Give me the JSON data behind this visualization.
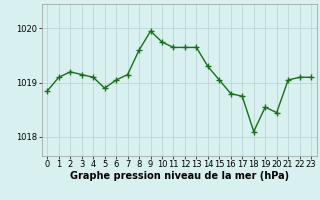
{
  "x": [
    0,
    1,
    2,
    3,
    4,
    5,
    6,
    7,
    8,
    9,
    10,
    11,
    12,
    13,
    14,
    15,
    16,
    17,
    18,
    19,
    20,
    21,
    22,
    23
  ],
  "y": [
    1018.85,
    1019.1,
    1019.2,
    1019.15,
    1019.1,
    1018.9,
    1019.05,
    1019.15,
    1019.6,
    1019.95,
    1019.75,
    1019.65,
    1019.65,
    1019.65,
    1019.3,
    1019.05,
    1018.8,
    1018.75,
    1018.1,
    1018.55,
    1018.45,
    1019.05,
    1019.1,
    1019.1
  ],
  "line_color": "#1a6e1a",
  "marker_color": "#1a6e1a",
  "bg_color": "#d8f0f0",
  "grid_color": "#b8d0d0",
  "xlabel": "Graphe pression niveau de la mer (hPa)",
  "yticks": [
    1018,
    1019,
    1020
  ],
  "ylim": [
    1017.65,
    1020.45
  ],
  "xlim": [
    -0.5,
    23.5
  ],
  "xlabel_fontsize": 7,
  "tick_fontsize": 6,
  "marker_size": 4,
  "line_width": 1.0
}
